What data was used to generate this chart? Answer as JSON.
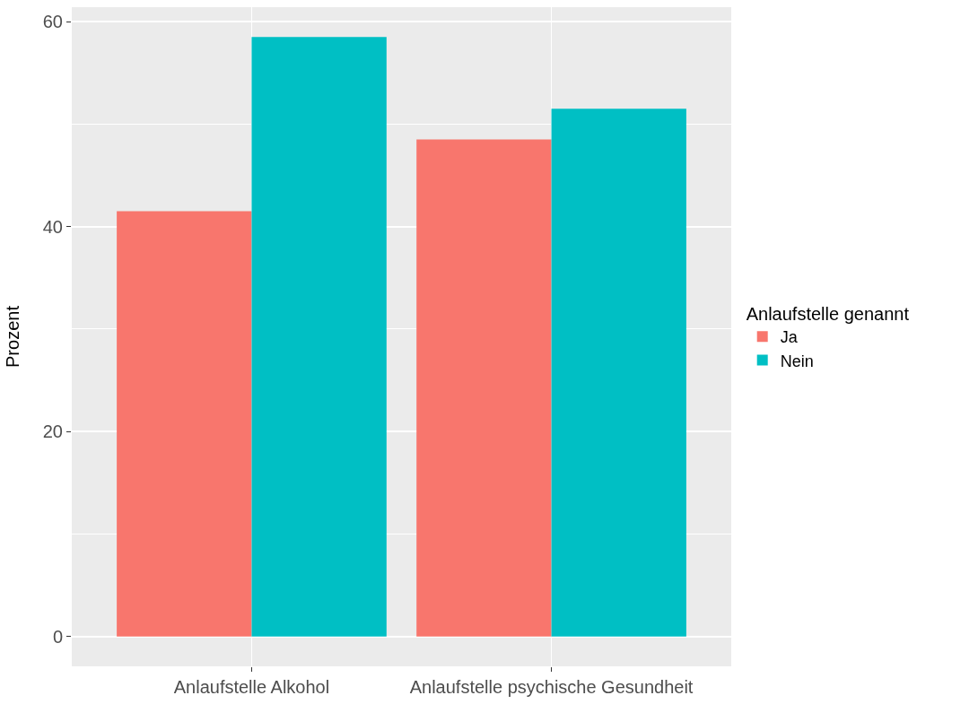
{
  "chart_data": {
    "type": "bar",
    "ylabel": "Prozent",
    "legend_title": "Anlaufstelle genannt",
    "categories": [
      "Anlaufstelle Alkohol",
      "Anlaufstelle psychische Gesundheit"
    ],
    "series": [
      {
        "name": "Ja",
        "color": "#f8766d",
        "values": [
          41.5,
          48.5
        ]
      },
      {
        "name": "Nein",
        "color": "#00bfc4",
        "values": [
          58.5,
          51.5
        ]
      }
    ],
    "ylim": [
      -2.9,
      61.4
    ],
    "yticks": [
      0,
      20,
      40,
      60
    ],
    "grid": true,
    "legend": "right"
  }
}
